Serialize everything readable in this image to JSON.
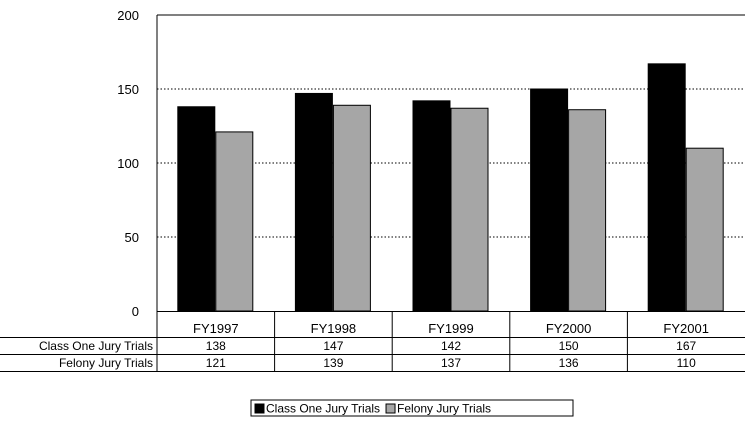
{
  "chart_data": {
    "type": "bar",
    "categories": [
      "FY1997",
      "FY1998",
      "FY1999",
      "FY2000",
      "FY2001"
    ],
    "series": [
      {
        "name": "Class One Jury Trials",
        "values": [
          138,
          147,
          142,
          150,
          167
        ],
        "color": "#000000"
      },
      {
        "name": "Felony Jury Trials",
        "values": [
          121,
          139,
          137,
          136,
          110
        ],
        "color": "#a6a6a6"
      }
    ],
    "ylim": [
      0,
      200
    ],
    "yticks": [
      0,
      50,
      100,
      150,
      200
    ],
    "grid": "horizontal-dotted",
    "legend_placement": "bottom",
    "data_table": true
  }
}
